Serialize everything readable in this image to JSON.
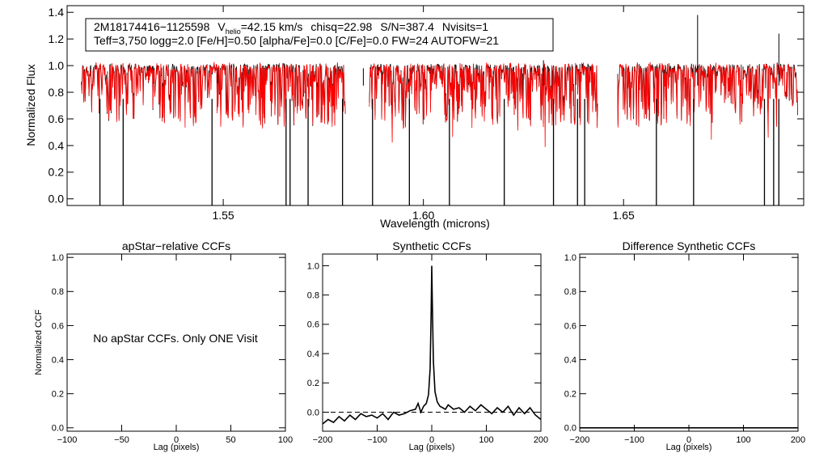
{
  "chart_data": [
    {
      "type": "line",
      "title": "",
      "xlabel": "Wavelength (microns)",
      "ylabel": "Normalized Flux",
      "xlim": [
        1.511,
        1.695
      ],
      "ylim": [
        -0.05,
        1.45
      ],
      "xticks": [
        "1.55",
        "1.60",
        "1.65"
      ],
      "xtick_values": [
        1.55,
        1.6,
        1.65
      ],
      "yticks": [
        "0.0",
        "0.2",
        "0.4",
        "0.6",
        "0.8",
        "1.0",
        "1.2",
        "1.4"
      ],
      "ytick_values": [
        0.0,
        0.2,
        0.4,
        0.6,
        0.8,
        1.0,
        1.2,
        1.4
      ],
      "chips": [
        [
          1.5145,
          1.5805
        ],
        [
          1.5865,
          1.6435
        ],
        [
          1.6485,
          1.6935
        ]
      ],
      "series": [
        {
          "name": "observed spectrum",
          "color": "#000000"
        },
        {
          "name": "model spectrum",
          "color": "#ff0000"
        }
      ],
      "dropouts": [
        1.5192,
        1.525,
        1.5472,
        1.5657,
        1.5667,
        1.5712,
        1.5798,
        1.5873,
        1.5965,
        1.6065,
        1.6202,
        1.6325,
        1.6385,
        1.6403,
        1.6582,
        1.6675,
        1.6852,
        1.6875,
        1.6888
      ],
      "spikes": [
        [
          1.585,
          0.98
        ],
        [
          1.63,
          1.04
        ],
        [
          1.6685,
          1.38
        ],
        [
          1.6888,
          1.24
        ]
      ],
      "legend_box": {
        "line1": {
          "id": "2M18174416−1125598",
          "v_prefix": "V",
          "v_sub": "helio",
          "v_value": "=42.15 km/s",
          "chisq": "chisq=22.98",
          "snr": "S/N=387.4",
          "nvisits": "Nvisits=1"
        },
        "line2": "Teff=3,750 logg=2.0 [Fe/H]=0.50 [alpha/Fe]=0.0 [C/Fe]=0.0 FW=24 AUTOFW=21"
      }
    },
    {
      "type": "line",
      "title": "apStar−relative CCFs",
      "xlabel": "Lag (pixels)",
      "ylabel": "Normalized CCF",
      "xlim": [
        -100,
        100
      ],
      "ylim": [
        -0.02,
        1.02
      ],
      "xticks": [
        "−100",
        "−50",
        "0",
        "50",
        "100"
      ],
      "xtick_values": [
        -100,
        -50,
        0,
        50,
        100
      ],
      "yticks": [
        "0.0",
        "0.2",
        "0.4",
        "0.6",
        "0.8",
        "1.0"
      ],
      "ytick_values": [
        0.0,
        0.2,
        0.4,
        0.6,
        0.8,
        1.0
      ],
      "annotation": "No apStar CCFs.  Only ONE Visit"
    },
    {
      "type": "line",
      "title": "Synthetic CCFs",
      "xlabel": "Lag (pixels)",
      "ylabel": "",
      "xlim": [
        -200,
        200
      ],
      "ylim": [
        -0.13,
        1.08
      ],
      "xticks": [
        "−200",
        "−100",
        "0",
        "100",
        "200"
      ],
      "xtick_values": [
        -200,
        -100,
        0,
        100,
        200
      ],
      "yticks": [
        "0.0",
        "0.2",
        "0.4",
        "0.6",
        "0.8",
        "1.0"
      ],
      "ytick_values": [
        0.0,
        0.2,
        0.4,
        0.6,
        0.8,
        1.0
      ],
      "baseline": 0.0,
      "series": [
        {
          "name": "synthetic CCF",
          "x": [
            -200,
            -190,
            -180,
            -170,
            -160,
            -150,
            -140,
            -130,
            -120,
            -110,
            -100,
            -90,
            -80,
            -70,
            -60,
            -50,
            -40,
            -30,
            -25,
            -20,
            -15,
            -10,
            -6,
            -3,
            -1,
            0,
            1,
            3,
            6,
            10,
            15,
            20,
            25,
            30,
            40,
            50,
            60,
            70,
            80,
            90,
            100,
            110,
            120,
            130,
            140,
            150,
            160,
            170,
            180,
            190,
            200
          ],
          "y": [
            -0.08,
            -0.05,
            -0.07,
            -0.03,
            -0.06,
            -0.02,
            -0.05,
            -0.01,
            -0.03,
            -0.02,
            -0.04,
            -0.01,
            -0.05,
            0.0,
            -0.02,
            -0.01,
            0.01,
            0.02,
            0.06,
            0.0,
            0.04,
            0.06,
            0.12,
            0.3,
            0.7,
            1.0,
            0.75,
            0.35,
            0.14,
            0.07,
            0.04,
            0.03,
            0.02,
            0.05,
            0.02,
            0.03,
            0.0,
            0.04,
            0.01,
            0.05,
            0.02,
            -0.01,
            0.03,
            0.0,
            0.04,
            -0.02,
            0.03,
            -0.01,
            0.03,
            -0.02,
            -0.05
          ]
        }
      ]
    },
    {
      "type": "line",
      "title": "Difference Synthetic CCFs",
      "xlabel": "Lag (pixels)",
      "ylabel": "",
      "xlim": [
        -200,
        200
      ],
      "ylim": [
        -0.02,
        1.02
      ],
      "xticks": [
        "−200",
        "−100",
        "0",
        "100",
        "200"
      ],
      "xtick_values": [
        -200,
        -100,
        0,
        100,
        200
      ],
      "yticks": [
        "0.0",
        "0.2",
        "0.4",
        "0.6",
        "0.8",
        "1.0"
      ],
      "ytick_values": [
        0.0,
        0.2,
        0.4,
        0.6,
        0.8,
        1.0
      ],
      "series": [
        {
          "name": "difference CCF",
          "x": [
            -200,
            200
          ],
          "y": [
            0.0,
            0.0
          ]
        }
      ]
    }
  ]
}
